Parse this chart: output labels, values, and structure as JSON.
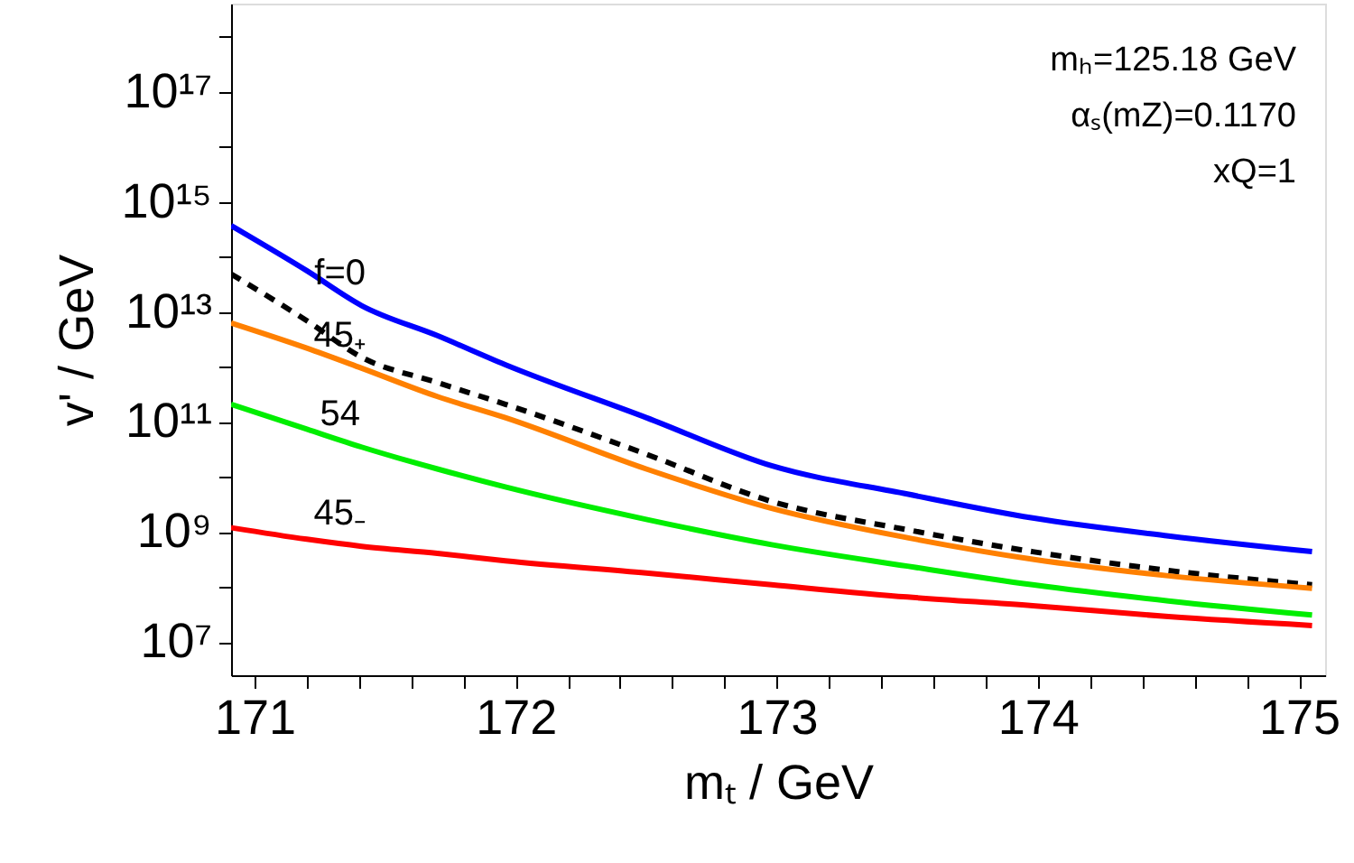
{
  "chart_data": {
    "type": "line",
    "xlabel": "mₜ / GeV",
    "ylabel": "v' / GeV",
    "log": "y",
    "line_style": "solid",
    "marker": "none",
    "x": [
      170.91,
      171.2,
      171.41,
      171.7,
      171.96,
      172.5,
      172.98,
      173.5,
      173.98,
      174.5,
      175.05
    ],
    "xlim": [
      170.91,
      175.1
    ],
    "xticks": [
      171,
      {
        "value": 171.2,
        "label": null
      },
      {
        "value": 171.4,
        "label": null
      },
      {
        "value": 171.6,
        "label": null
      },
      {
        "value": 171.8,
        "label": null
      },
      172,
      {
        "value": 172.2,
        "label": null
      },
      {
        "value": 172.4,
        "label": null
      },
      {
        "value": 172.6,
        "label": null
      },
      {
        "value": 172.8,
        "label": null
      },
      173,
      {
        "value": 173.2,
        "label": null
      },
      {
        "value": 173.4,
        "label": null
      },
      {
        "value": 173.6,
        "label": null
      },
      {
        "value": 173.8,
        "label": null
      },
      174,
      {
        "value": 174.2,
        "label": null
      },
      {
        "value": 174.4,
        "label": null
      },
      {
        "value": 174.6,
        "label": null
      },
      {
        "value": 174.8,
        "label": null
      },
      175
    ],
    "ylim": [
      2500000.0,
      4e+18
    ],
    "yticks": [
      {
        "value": 10000000.0,
        "label": "10⁷"
      },
      {
        "value": 100000000.0,
        "label": null
      },
      {
        "value": 1000000000.0,
        "label": "10⁹"
      },
      {
        "value": 10000000000.0,
        "label": null
      },
      {
        "value": 100000000000.0,
        "label": "10¹¹"
      },
      {
        "value": 1000000000000.0,
        "label": null
      },
      {
        "value": 10000000000000.0,
        "label": "10¹³"
      },
      {
        "value": 100000000000000.0,
        "label": null
      },
      {
        "value": 1000000000000000.0,
        "label": "10¹⁵"
      },
      {
        "value": 1e+16,
        "label": null
      },
      {
        "value": 1e+17,
        "label": "10¹⁷"
      },
      {
        "value": 1e+18,
        "label": null
      }
    ],
    "series": [
      {
        "name": "f=0",
        "color": "#0000ff",
        "values": [
          370000000000000.0,
          56000000000000.0,
          13000000000000.0,
          3700000000000.0,
          1100000000000.0,
          120000000000.0,
          16000000000.0,
          4900000000.0,
          1800000000.0,
          850000000.0,
          440000000.0
        ]
      },
      {
        "color": "#000000",
        "line_style": "dashed",
        "values": [
          49000000000000.0,
          6900000000000.0,
          1500000000000.0,
          520000000000.0,
          210000000000.0,
          26000000000.0,
          3600000000.0,
          1100000000.0,
          440000000.0,
          200000000.0,
          110000000.0
        ]
      },
      {
        "name": "45₊",
        "color": "#ff8000",
        "values": [
          6300000000000.0,
          2200000000000.0,
          950000000000.0,
          290000000000.0,
          120000000000.0,
          14000000000.0,
          2700000000.0,
          790000000.0,
          320000000.0,
          160000000.0,
          95000000.0
        ]
      },
      {
        "name": "54",
        "color": "#00ee00",
        "values": [
          210000000000.0,
          74000000000.0,
          35000000000.0,
          14000000000.0,
          6600000000.0,
          1700000000.0,
          590000000.0,
          240000000.0,
          110000000.0,
          56000000.0,
          31000000.0
        ]
      },
      {
        "name": "45₋",
        "color": "#ff0000",
        "values": [
          1200000000.0,
          740000000.0,
          550000000.0,
          410000000.0,
          300000000.0,
          180000000.0,
          110000000.0,
          66000000.0,
          46000000.0,
          29000000.0,
          20000000.0
        ]
      }
    ],
    "annotations": [
      "mₕ=125.18 GeV",
      "αₛ(mZ)=0.1170",
      "xQ=1"
    ]
  }
}
